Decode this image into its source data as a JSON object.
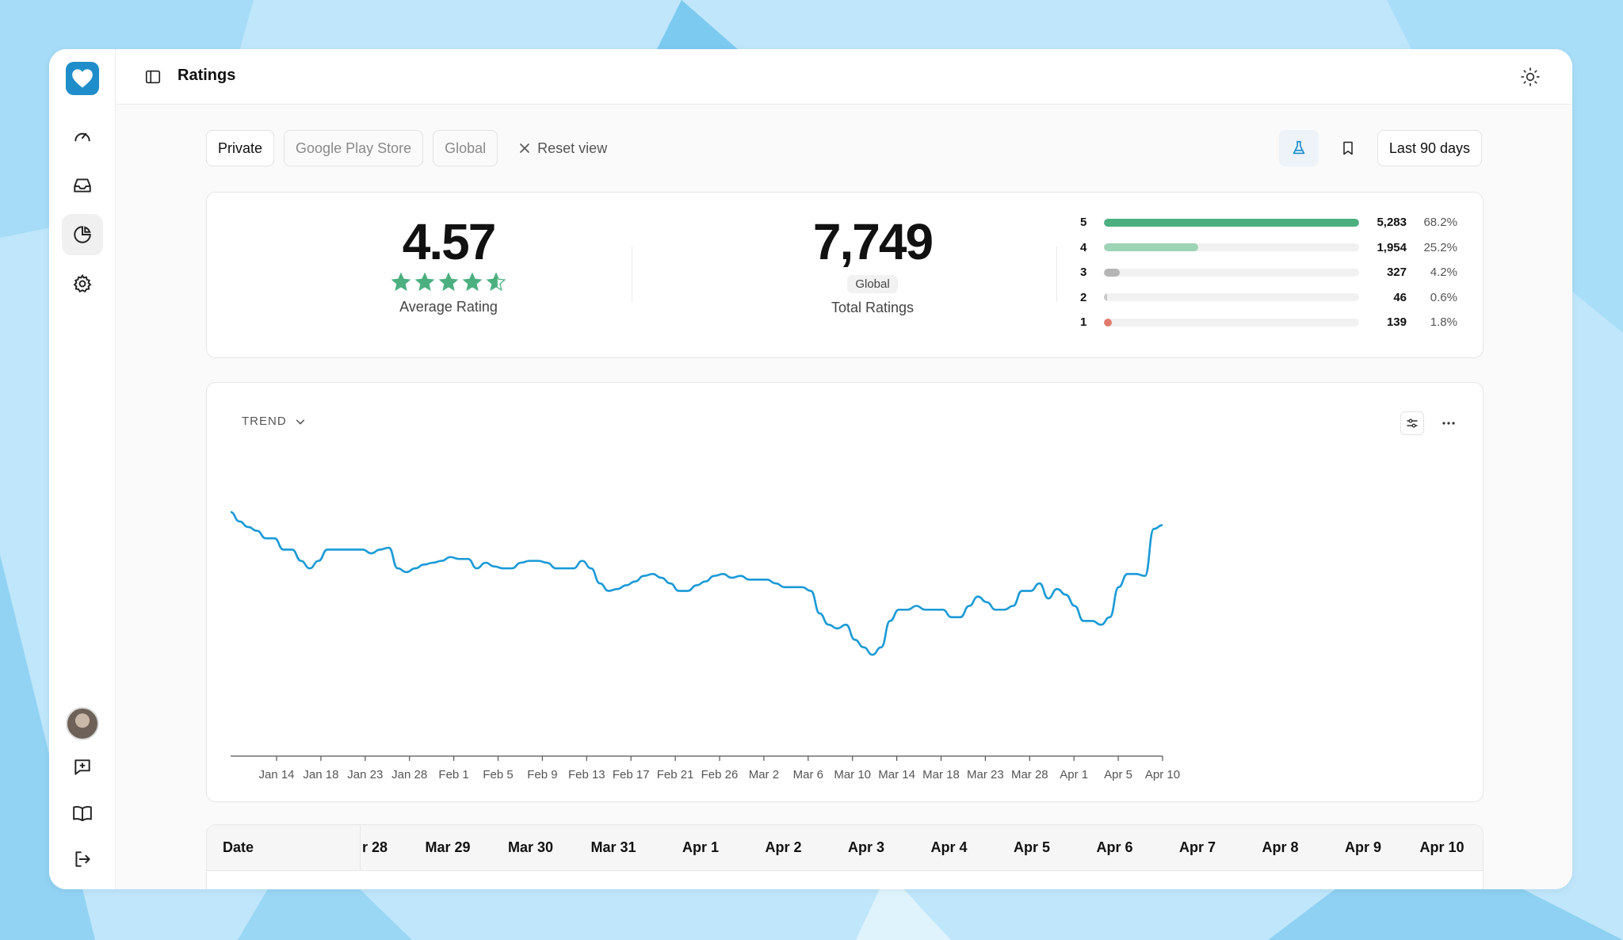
{
  "app": {
    "page_title": "Ratings"
  },
  "filters": {
    "items": [
      "Private",
      "Google Play Store",
      "Global"
    ],
    "reset_label": "Reset view",
    "date_range": "Last 90 days"
  },
  "stats": {
    "average": {
      "value": "4.57",
      "label": "Average Rating",
      "stars": 4.57
    },
    "total": {
      "value": "7,749",
      "badge": "Global",
      "label": "Total Ratings"
    },
    "distribution": [
      {
        "star": "5",
        "count": "5,283",
        "pct": "68.2%",
        "fraction": 1.0,
        "color": "#4caf80"
      },
      {
        "star": "4",
        "count": "1,954",
        "pct": "25.2%",
        "fraction": 0.37,
        "color": "#9dd4b5"
      },
      {
        "star": "3",
        "count": "327",
        "pct": "4.2%",
        "fraction": 0.062,
        "color": "#b5b5b5"
      },
      {
        "star": "2",
        "count": "46",
        "pct": "0.6%",
        "fraction": 0.009,
        "color": "#c7c7c7"
      },
      {
        "star": "1",
        "count": "139",
        "pct": "1.8%",
        "fraction": 0.026,
        "color": "#e07a6d"
      }
    ]
  },
  "trend": {
    "title": "TREND"
  },
  "chart_data": {
    "type": "line",
    "x_ticks": [
      "Jan 14",
      "Jan 18",
      "Jan 23",
      "Jan 28",
      "Feb 1",
      "Feb 5",
      "Feb 9",
      "Feb 13",
      "Feb 17",
      "Feb 21",
      "Feb 26",
      "Mar 2",
      "Mar 6",
      "Mar 10",
      "Mar 14",
      "Mar 18",
      "Mar 23",
      "Mar 28",
      "Apr 1",
      "Apr 5",
      "Apr 10"
    ],
    "y_relative": [
      0.0,
      0.05,
      0.08,
      0.1,
      0.14,
      0.14,
      0.2,
      0.2,
      0.26,
      0.3,
      0.26,
      0.2,
      0.2,
      0.2,
      0.2,
      0.2,
      0.22,
      0.2,
      0.19,
      0.3,
      0.32,
      0.3,
      0.28,
      0.27,
      0.26,
      0.24,
      0.25,
      0.25,
      0.3,
      0.27,
      0.29,
      0.3,
      0.3,
      0.27,
      0.26,
      0.26,
      0.27,
      0.3,
      0.3,
      0.3,
      0.26,
      0.3,
      0.38,
      0.42,
      0.41,
      0.39,
      0.37,
      0.34,
      0.33,
      0.35,
      0.38,
      0.42,
      0.42,
      0.39,
      0.37,
      0.34,
      0.33,
      0.35,
      0.34,
      0.36,
      0.36,
      0.36,
      0.38,
      0.4,
      0.4,
      0.4,
      0.42,
      0.54,
      0.6,
      0.62,
      0.6,
      0.68,
      0.72,
      0.76,
      0.72,
      0.58,
      0.52,
      0.52,
      0.5,
      0.52,
      0.52,
      0.52,
      0.56,
      0.56,
      0.5,
      0.45,
      0.48,
      0.52,
      0.52,
      0.5,
      0.42,
      0.42,
      0.38,
      0.46,
      0.41,
      0.44,
      0.5,
      0.58,
      0.58,
      0.6,
      0.56,
      0.4,
      0.33,
      0.33,
      0.34,
      0.09,
      0.07
    ],
    "color": "#1a9ad6"
  },
  "table": {
    "first_header": "Date",
    "columns": [
      "r 28",
      "Mar 29",
      "Mar 30",
      "Mar 31",
      "Apr 1",
      "Apr 2",
      "Apr 3",
      "Apr 4",
      "Apr 5",
      "Apr 6",
      "Apr 7",
      "Apr 8",
      "Apr 9",
      "Apr 10"
    ]
  }
}
